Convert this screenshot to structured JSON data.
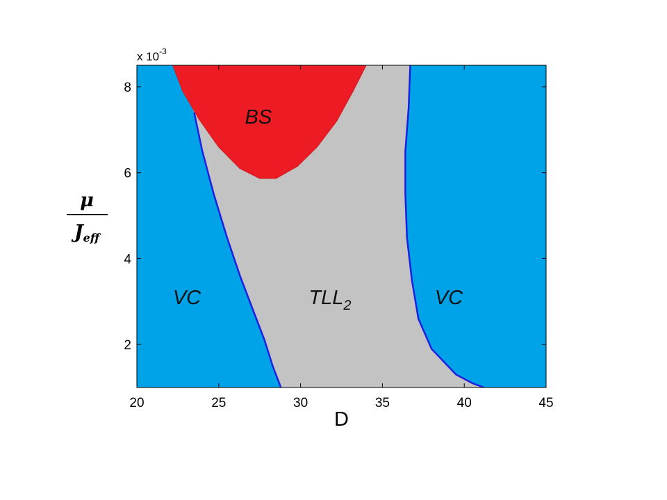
{
  "chart_data": {
    "type": "area",
    "title": "",
    "xlabel": "D",
    "ylabel": {
      "numerator": "μ",
      "denominator": "J",
      "denominator_subscript": "eff"
    },
    "xlim": [
      20,
      45
    ],
    "ylim": [
      0.001,
      0.0085
    ],
    "y_multiplier": {
      "base": "x 10",
      "exponent": "-3"
    },
    "xticks": [
      20,
      25,
      30,
      35,
      40,
      45
    ],
    "yticks": [
      2,
      4,
      6,
      8
    ],
    "grid": false,
    "colors": {
      "VC": "#00a2e8",
      "BS": "#ed1c24",
      "TLL2": "#c3c3c3",
      "boundary_line": "#1f1fe0"
    },
    "regions": [
      {
        "name": "BS",
        "label": "BS",
        "label_at": [
          26.6,
          7.3
        ]
      },
      {
        "name": "TLL2",
        "label": "TLL",
        "label_sub": "2",
        "label_at": [
          30.5,
          3.1
        ]
      },
      {
        "name": "VC_left",
        "label": "VC",
        "label_at": [
          22.2,
          3.1
        ]
      },
      {
        "name": "VC_right",
        "label": "VC",
        "label_at": [
          38.2,
          3.1
        ]
      }
    ],
    "boundaries": {
      "VC_TLL2_left": [
        [
          23.5,
          7.4
        ],
        [
          24.0,
          6.5
        ],
        [
          24.7,
          5.5
        ],
        [
          25.5,
          4.5
        ],
        [
          26.3,
          3.6
        ],
        [
          27.0,
          2.9
        ],
        [
          27.8,
          2.1
        ],
        [
          28.3,
          1.5
        ],
        [
          28.8,
          1.0
        ]
      ],
      "VC_TLL2_right": [
        [
          36.7,
          8.5
        ],
        [
          36.6,
          7.5
        ],
        [
          36.4,
          6.5
        ],
        [
          36.4,
          5.5
        ],
        [
          36.5,
          4.5
        ],
        [
          36.8,
          3.5
        ],
        [
          37.2,
          2.6
        ],
        [
          38.0,
          1.9
        ],
        [
          39.5,
          1.3
        ],
        [
          40.5,
          1.1
        ],
        [
          41.2,
          1.0
        ]
      ],
      "BS_upper": [
        [
          22.2,
          8.5
        ],
        [
          22.8,
          7.9
        ],
        [
          23.8,
          7.25
        ],
        [
          25.0,
          6.6
        ],
        [
          26.3,
          6.1
        ],
        [
          27.5,
          5.87
        ],
        [
          28.5,
          5.87
        ],
        [
          29.8,
          6.15
        ],
        [
          31.0,
          6.6
        ],
        [
          32.2,
          7.2
        ],
        [
          33.2,
          7.9
        ],
        [
          34.0,
          8.5
        ]
      ],
      "BS_left_end": [
        [
          22.2,
          8.5
        ],
        [
          23.5,
          7.4
        ]
      ]
    }
  }
}
